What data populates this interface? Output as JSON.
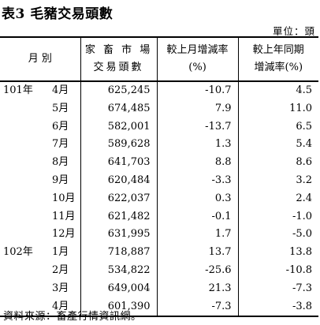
{
  "title": "表3  毛豬交易頭數",
  "unit": "單位：頭",
  "headers": {
    "month": "月 別",
    "col1_line1": "家 畜 市 場",
    "col1_line2": "交易頭數",
    "col2_line1": "較上月增減率",
    "col2_line2": "(%)",
    "col3_line1": "較上年同期",
    "col3_line2": "增減率(%)"
  },
  "rows": [
    {
      "year": "101年",
      "month": "4月",
      "count": "625,245",
      "mom": "-10.7",
      "yoy": "4.5"
    },
    {
      "year": "",
      "month": "5月",
      "count": "674,485",
      "mom": "7.9",
      "yoy": "11.0"
    },
    {
      "year": "",
      "month": "6月",
      "count": "582,001",
      "mom": "-13.7",
      "yoy": "6.5"
    },
    {
      "year": "",
      "month": "7月",
      "count": "589,628",
      "mom": "1.3",
      "yoy": "5.4"
    },
    {
      "year": "",
      "month": "8月",
      "count": "641,703",
      "mom": "8.8",
      "yoy": "8.6"
    },
    {
      "year": "",
      "month": "9月",
      "count": "620,484",
      "mom": "-3.3",
      "yoy": "3.2"
    },
    {
      "year": "",
      "month": "10月",
      "count": "622,037",
      "mom": "0.3",
      "yoy": "2.4"
    },
    {
      "year": "",
      "month": "11月",
      "count": "621,482",
      "mom": "-0.1",
      "yoy": "-1.0"
    },
    {
      "year": "",
      "month": "12月",
      "count": "631,995",
      "mom": "1.7",
      "yoy": "-5.0"
    },
    {
      "year": "102年",
      "month": "1月",
      "count": "718,887",
      "mom": "13.7",
      "yoy": "13.8"
    },
    {
      "year": "",
      "month": "2月",
      "count": "534,822",
      "mom": "-25.6",
      "yoy": "-10.8"
    },
    {
      "year": "",
      "month": "3月",
      "count": "649,004",
      "mom": "21.3",
      "yoy": "-7.3"
    },
    {
      "year": "",
      "month": "4月",
      "count": "601,390",
      "mom": "-7.3",
      "yoy": "-3.8"
    }
  ],
  "footnote": "資料來源：畜產行情資訊網。"
}
